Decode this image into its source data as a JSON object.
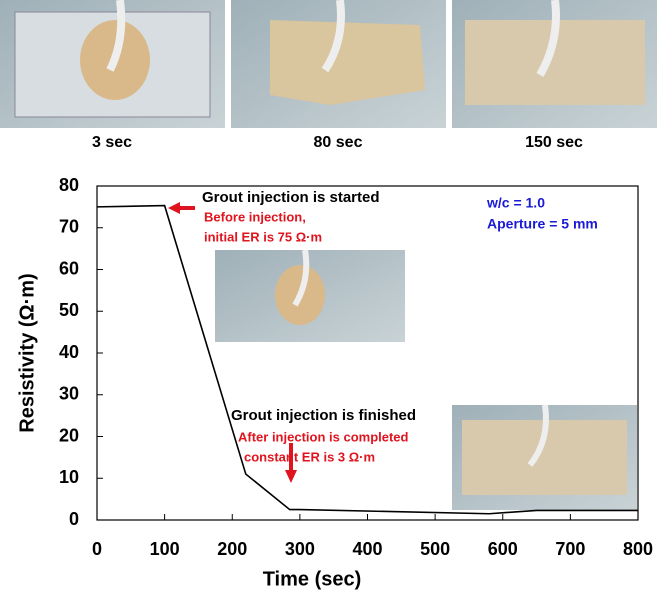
{
  "photo_captions": [
    "3 sec",
    "80 sec",
    "150 sec"
  ],
  "chart_data": {
    "type": "line",
    "x_label": "Time (sec)",
    "y_label": "Resistivity (Ω·m)",
    "x": [
      0,
      100,
      220,
      285,
      300,
      580,
      650,
      800
    ],
    "series": [
      {
        "color": "#000000",
        "values": [
          75,
          75.3,
          11,
          2.5,
          2.5,
          1.5,
          2.3,
          2.3
        ]
      }
    ],
    "xlim": [
      0,
      800
    ],
    "xticks": [
      0,
      100,
      200,
      300,
      400,
      500,
      600,
      700,
      800
    ],
    "ylim": [
      0,
      80
    ],
    "yticks": [
      0,
      10,
      20,
      30,
      40,
      50,
      60,
      70,
      80
    ],
    "annotations": [
      "Grout injection is started",
      "Before injection,",
      "initial ER is 75 Ω·m",
      "w/c = 1.0",
      "Aperture = 5 mm",
      "Grout injection is finished",
      "After injection is completed",
      "constant ER is 3 Ω·m"
    ]
  }
}
